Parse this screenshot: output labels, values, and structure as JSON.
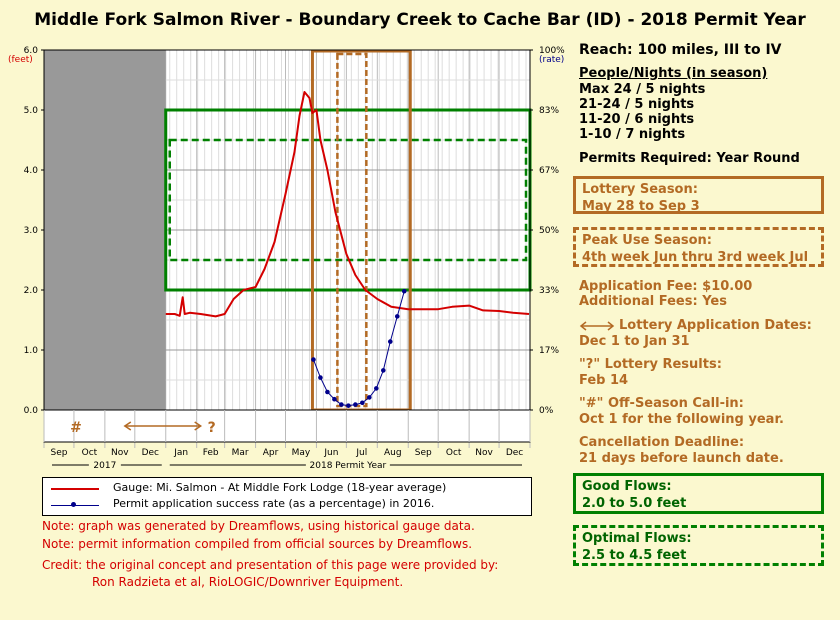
{
  "title": "Middle Fork Salmon River - Boundary Creek to Cache Bar (ID) - 2018 Permit Year",
  "axes": {
    "left_unit_line1": "(feet)",
    "right_unit_line1": "(rate)",
    "left_ticks": [
      "0.0",
      "1.0",
      "2.0",
      "3.0",
      "4.0",
      "5.0",
      "6.0"
    ],
    "right_ticks": [
      "0%",
      "17%",
      "33%",
      "50%",
      "67%",
      "83%",
      "100%"
    ],
    "months": [
      "Sep",
      "Oct",
      "Nov",
      "Dec",
      "Jan",
      "Feb",
      "Mar",
      "Apr",
      "May",
      "Jun",
      "Jul",
      "Aug",
      "Sep",
      "Oct",
      "Nov",
      "Dec"
    ],
    "year_2017": "2017",
    "year_2018": "2018 Permit Year",
    "hash_marker": "#",
    "question_marker": "?"
  },
  "legend": {
    "gauge": "Gauge: Mi. Salmon - At Middle Fork Lodge (18-year average)",
    "permit": "Permit application success rate (as a percentage) in 2016."
  },
  "notes": {
    "note1": "Note: graph was generated by Dreamflows, using historical gauge data.",
    "note2": "Note: permit information compiled from official sources by Dreamflows.",
    "credit1": "Credit: the original concept and presentation of this page were provided by:",
    "credit2": "Ron Radzieta et al, RioLOGIC/Downriver Equipment."
  },
  "side": {
    "reach": "Reach: 100 miles, III to IV",
    "people_title": "People/Nights (in season)",
    "people": [
      "Max 24 / 5 nights",
      "21-24 / 5 nights",
      "11-20 / 6 nights",
      "1-10 / 7 nights"
    ],
    "permits_required": "Permits Required: Year Round",
    "lottery_label": "Lottery Season:",
    "lottery_value": "May 28 to Sep 3",
    "peak_label": "Peak Use Season:",
    "peak_value": "4th week Jun thru 3rd week Jul",
    "app_fee": "Application Fee: $10.00",
    "add_fees": "Additional Fees: Yes",
    "app_dates_label": "Lottery Application Dates:",
    "app_dates_value": "Dec 1 to Jan 31",
    "results_label": "\"?\" Lottery Results:",
    "results_value": "Feb 14",
    "offseason_label": "\"#\" Off-Season Call-in:",
    "offseason_value": "Oct 1 for the following year.",
    "cancel_label": "Cancellation Deadline:",
    "cancel_value": "21 days before launch date.",
    "good_label": "Good Flows:",
    "good_value": "2.0 to 5.0 feet",
    "optimal_label": "Optimal Flows:",
    "optimal_value": "2.5 to 4.5 feet"
  },
  "colors": {
    "gauge_line": "#d40000",
    "permit_line": "#00008b",
    "brown": "#b36a24",
    "green": "#008000",
    "shaded": "#999999"
  },
  "chart_data": {
    "type": "line",
    "title": "Middle Fork Salmon River - Boundary Creek to Cache Bar (ID) - 2018 Permit Year",
    "x_range": [
      "2017-09-01",
      "2018-12-31"
    ],
    "ylim_left": [
      0,
      6
    ],
    "ylim_right_percent": [
      0,
      100
    ],
    "shaded_period": [
      "2017-09-01",
      "2017-12-31"
    ],
    "series": [
      {
        "name": "Gauge: Mi. Salmon - At Middle Fork Lodge (18-year average)",
        "axis": "left",
        "x": [
          "2018-01-01",
          "2018-01-10",
          "2018-01-15",
          "2018-01-18",
          "2018-01-20",
          "2018-01-25",
          "2018-02-05",
          "2018-02-20",
          "2018-03-01",
          "2018-03-10",
          "2018-03-20",
          "2018-04-01",
          "2018-04-10",
          "2018-04-20",
          "2018-05-01",
          "2018-05-10",
          "2018-05-15",
          "2018-05-20",
          "2018-05-25",
          "2018-05-28",
          "2018-06-01",
          "2018-06-05",
          "2018-06-12",
          "2018-06-20",
          "2018-07-01",
          "2018-07-10",
          "2018-07-20",
          "2018-08-01",
          "2018-08-15",
          "2018-09-01",
          "2018-09-15",
          "2018-10-01",
          "2018-10-15",
          "2018-11-01",
          "2018-11-15",
          "2018-12-01",
          "2018-12-15",
          "2018-12-31"
        ],
        "y": [
          1.6,
          1.6,
          1.57,
          1.88,
          1.6,
          1.62,
          1.6,
          1.56,
          1.6,
          1.85,
          2.0,
          2.05,
          2.35,
          2.8,
          3.6,
          4.3,
          4.9,
          5.3,
          5.2,
          4.95,
          5.0,
          4.5,
          4.0,
          3.3,
          2.6,
          2.25,
          2.0,
          1.85,
          1.72,
          1.68,
          1.68,
          1.68,
          1.72,
          1.74,
          1.66,
          1.65,
          1.62,
          1.6
        ]
      },
      {
        "name": "Permit application success rate (as a percentage) in 2016.",
        "axis": "right",
        "x": [
          "2018-05-29",
          "2018-06-05",
          "2018-06-12",
          "2018-06-19",
          "2018-06-26",
          "2018-07-03",
          "2018-07-10",
          "2018-07-17",
          "2018-07-24",
          "2018-07-31",
          "2018-08-07",
          "2018-08-14",
          "2018-08-21",
          "2018-08-28"
        ],
        "y": [
          14,
          9,
          5,
          3,
          1.5,
          1.2,
          1.5,
          2,
          3.5,
          6,
          11,
          19,
          26,
          33
        ]
      }
    ],
    "overlays": {
      "good_flows_ft": [
        2.0,
        5.0
      ],
      "optimal_flows_ft": [
        2.5,
        4.5
      ],
      "lottery_season": [
        "2018-05-28",
        "2018-09-03"
      ],
      "peak_use_season": [
        "2018-06-22",
        "2018-07-21"
      ],
      "application_dates": [
        "2017-12-01",
        "2018-01-31"
      ],
      "lottery_results": "2018-02-14",
      "offseason_callin": "2017-10-01"
    }
  }
}
